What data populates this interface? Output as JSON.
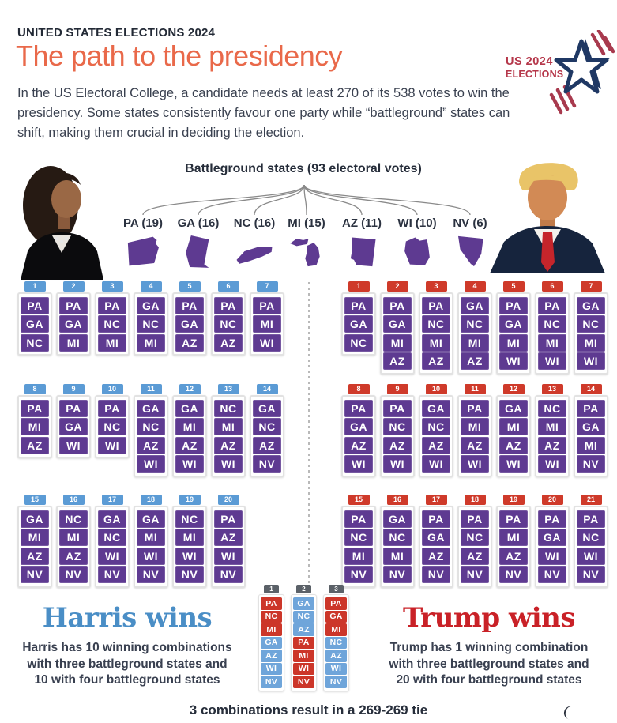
{
  "header": {
    "kicker": "UNITED STATES ELECTIONS 2024",
    "title": "The path to the presidency",
    "intro": "In the US Electoral College, a candidate needs at least 270 of its 538 votes to win the\npresidency. Some states consistently favour one party while “battleground” states can\nshift, making them crucial in deciding the election.",
    "logo": {
      "line1": "US 2024",
      "line2": "ELECTIONS"
    }
  },
  "battleground": {
    "title": "Battleground states (93 electoral votes)",
    "states": [
      {
        "abbr": "PA",
        "votes": 19,
        "label": "PA (19)"
      },
      {
        "abbr": "GA",
        "votes": 16,
        "label": "GA (16)"
      },
      {
        "abbr": "NC",
        "votes": 16,
        "label": "NC (16)"
      },
      {
        "abbr": "MI",
        "votes": 15,
        "label": "MI (15)"
      },
      {
        "abbr": "AZ",
        "votes": 11,
        "label": "AZ (11)"
      },
      {
        "abbr": "WI",
        "votes": 10,
        "label": "WI (10)"
      },
      {
        "abbr": "NV",
        "votes": 6,
        "label": "NV (6)"
      }
    ]
  },
  "harris": {
    "heading": "Harris wins",
    "summary": "Harris has 10 winning combinations\nwith three battleground states and\n10 with four battleground states",
    "combos": [
      {
        "n": 1,
        "states": [
          "PA",
          "GA",
          "NC"
        ]
      },
      {
        "n": 2,
        "states": [
          "PA",
          "GA",
          "MI"
        ]
      },
      {
        "n": 3,
        "states": [
          "PA",
          "NC",
          "MI"
        ]
      },
      {
        "n": 4,
        "states": [
          "GA",
          "NC",
          "MI"
        ]
      },
      {
        "n": 5,
        "states": [
          "PA",
          "GA",
          "AZ"
        ]
      },
      {
        "n": 6,
        "states": [
          "PA",
          "NC",
          "AZ"
        ]
      },
      {
        "n": 7,
        "states": [
          "PA",
          "MI",
          "WI"
        ]
      },
      {
        "n": 8,
        "states": [
          "PA",
          "MI",
          "AZ"
        ]
      },
      {
        "n": 9,
        "states": [
          "PA",
          "GA",
          "WI"
        ]
      },
      {
        "n": 10,
        "states": [
          "PA",
          "NC",
          "WI"
        ]
      },
      {
        "n": 11,
        "states": [
          "GA",
          "NC",
          "AZ",
          "WI"
        ]
      },
      {
        "n": 12,
        "states": [
          "GA",
          "MI",
          "AZ",
          "WI"
        ]
      },
      {
        "n": 13,
        "states": [
          "NC",
          "MI",
          "AZ",
          "WI"
        ]
      },
      {
        "n": 14,
        "states": [
          "GA",
          "NC",
          "AZ",
          "NV"
        ]
      },
      {
        "n": 15,
        "states": [
          "GA",
          "MI",
          "AZ",
          "NV"
        ]
      },
      {
        "n": 16,
        "states": [
          "NC",
          "MI",
          "AZ",
          "NV"
        ]
      },
      {
        "n": 17,
        "states": [
          "GA",
          "NC",
          "WI",
          "NV"
        ]
      },
      {
        "n": 18,
        "states": [
          "GA",
          "MI",
          "WI",
          "NV"
        ]
      },
      {
        "n": 19,
        "states": [
          "NC",
          "MI",
          "WI",
          "NV"
        ]
      },
      {
        "n": 20,
        "states": [
          "PA",
          "AZ",
          "WI",
          "NV"
        ]
      }
    ]
  },
  "trump": {
    "heading": "Trump wins",
    "summary": "Trump has 1 winning combination\nwith three battleground states and\n20 with four battleground states",
    "combos": [
      {
        "n": 1,
        "states": [
          "PA",
          "GA",
          "NC"
        ]
      },
      {
        "n": 2,
        "states": [
          "PA",
          "GA",
          "MI",
          "AZ"
        ]
      },
      {
        "n": 3,
        "states": [
          "PA",
          "NC",
          "MI",
          "AZ"
        ]
      },
      {
        "n": 4,
        "states": [
          "GA",
          "NC",
          "MI",
          "AZ"
        ]
      },
      {
        "n": 5,
        "states": [
          "PA",
          "GA",
          "MI",
          "WI"
        ]
      },
      {
        "n": 6,
        "states": [
          "PA",
          "NC",
          "MI",
          "WI"
        ]
      },
      {
        "n": 7,
        "states": [
          "GA",
          "NC",
          "MI",
          "WI"
        ]
      },
      {
        "n": 8,
        "states": [
          "PA",
          "GA",
          "AZ",
          "WI"
        ]
      },
      {
        "n": 9,
        "states": [
          "PA",
          "NC",
          "AZ",
          "WI"
        ]
      },
      {
        "n": 10,
        "states": [
          "GA",
          "NC",
          "AZ",
          "WI"
        ]
      },
      {
        "n": 11,
        "states": [
          "PA",
          "MI",
          "AZ",
          "WI"
        ]
      },
      {
        "n": 12,
        "states": [
          "GA",
          "MI",
          "AZ",
          "WI"
        ]
      },
      {
        "n": 13,
        "states": [
          "NC",
          "MI",
          "AZ",
          "WI"
        ]
      },
      {
        "n": 14,
        "states": [
          "PA",
          "GA",
          "MI",
          "NV"
        ]
      },
      {
        "n": 15,
        "states": [
          "PA",
          "NC",
          "MI",
          "NV"
        ]
      },
      {
        "n": 16,
        "states": [
          "GA",
          "NC",
          "MI",
          "NV"
        ]
      },
      {
        "n": 17,
        "states": [
          "PA",
          "GA",
          "AZ",
          "NV"
        ]
      },
      {
        "n": 18,
        "states": [
          "PA",
          "NC",
          "AZ",
          "NV"
        ]
      },
      {
        "n": 19,
        "states": [
          "PA",
          "MI",
          "AZ",
          "NV"
        ]
      },
      {
        "n": 20,
        "states": [
          "PA",
          "GA",
          "WI",
          "NV"
        ]
      },
      {
        "n": 21,
        "states": [
          "PA",
          "NC",
          "WI",
          "NV"
        ]
      }
    ]
  },
  "tie": {
    "caption": "3 combinations result in a 269-269 tie",
    "combos": [
      {
        "n": 1,
        "states": [
          {
            "st": "PA",
            "party": "trump"
          },
          {
            "st": "NC",
            "party": "trump"
          },
          {
            "st": "MI",
            "party": "trump"
          },
          {
            "st": "GA",
            "party": "harris"
          },
          {
            "st": "AZ",
            "party": "harris"
          },
          {
            "st": "WI",
            "party": "harris"
          },
          {
            "st": "NV",
            "party": "harris"
          }
        ]
      },
      {
        "n": 2,
        "states": [
          {
            "st": "GA",
            "party": "harris"
          },
          {
            "st": "NC",
            "party": "harris"
          },
          {
            "st": "AZ",
            "party": "harris"
          },
          {
            "st": "PA",
            "party": "trump"
          },
          {
            "st": "MI",
            "party": "trump"
          },
          {
            "st": "WI",
            "party": "trump"
          },
          {
            "st": "NV",
            "party": "trump"
          }
        ]
      },
      {
        "n": 3,
        "states": [
          {
            "st": "PA",
            "party": "trump"
          },
          {
            "st": "GA",
            "party": "trump"
          },
          {
            "st": "MI",
            "party": "trump"
          },
          {
            "st": "NC",
            "party": "harris"
          },
          {
            "st": "AZ",
            "party": "harris"
          },
          {
            "st": "WI",
            "party": "harris"
          },
          {
            "st": "NV",
            "party": "harris"
          }
        ]
      }
    ]
  },
  "colors": {
    "purple": "#5e3a91",
    "harrisTag": "#5b9bd5",
    "trumpTag": "#cf3a2a",
    "tieRed": "#cc3629",
    "tieBlue": "#6fa5da",
    "tieTag": "#5b6168",
    "titleOrange": "#e9694a",
    "harrisBlue": "#4a8ec6",
    "trumpRed": "#c92127"
  }
}
